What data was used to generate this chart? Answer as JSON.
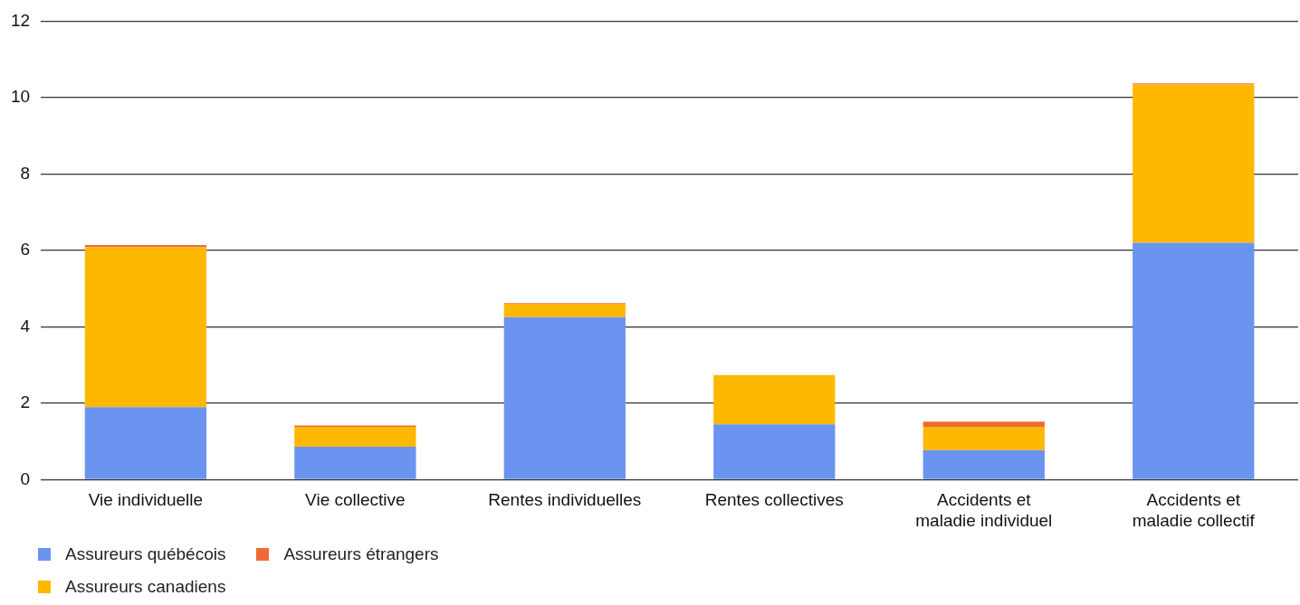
{
  "chart_data": {
    "type": "bar",
    "stacked": true,
    "categories": [
      "Vie individuelle",
      "Vie collective",
      "Rentes individuelles",
      "Rentes collectives",
      "Accidents et\nmaladie individuel",
      "Accidents et\nmaladie collectif"
    ],
    "series": [
      {
        "name": "Assureurs québécois",
        "color": "#6b93f0",
        "values": [
          1.9,
          0.86,
          4.25,
          1.45,
          0.77,
          6.2
        ]
      },
      {
        "name": "Assureurs canadiens",
        "color": "#ffb800",
        "values": [
          4.18,
          0.52,
          0.35,
          1.29,
          0.61,
          4.14
        ]
      },
      {
        "name": "Assureurs étrangers",
        "color": "#ee6c33",
        "values": [
          0.06,
          0.04,
          0.02,
          0,
          0.14,
          0.03
        ]
      }
    ],
    "ylim": [
      0,
      12
    ],
    "yticks": [
      0,
      2,
      4,
      6,
      8,
      10,
      12
    ],
    "grid": "y",
    "legend": "bottom left"
  }
}
